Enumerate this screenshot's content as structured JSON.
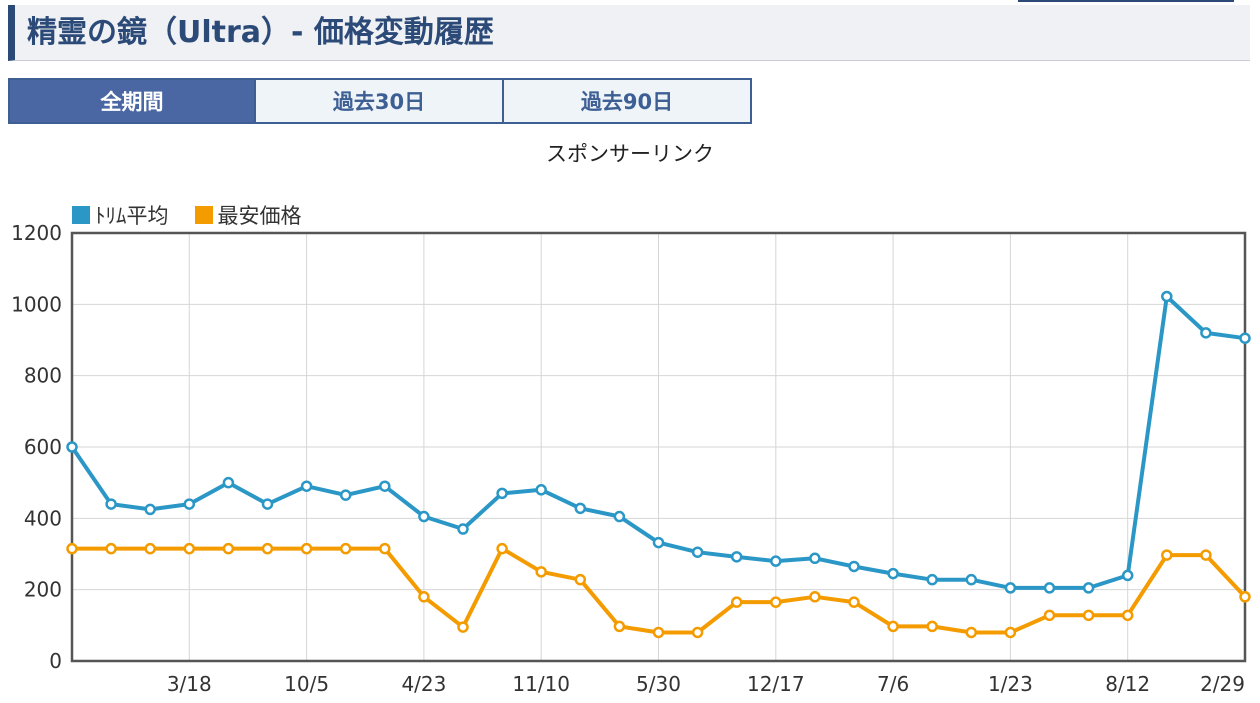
{
  "header": {
    "title": "精霊の鏡（Ultra）- 価格変動履歴"
  },
  "tabs": [
    {
      "label": "全期間",
      "active": true
    },
    {
      "label": "過去30日",
      "active": false
    },
    {
      "label": "過去90日",
      "active": false
    }
  ],
  "sponsor_text": "スポンサーリンク",
  "colors": {
    "accent": "#2c4a78",
    "tab_active": "#4a67a3",
    "series_trim": "#2b97c6",
    "series_min": "#f49b00"
  },
  "chart_data": {
    "type": "line",
    "x_tick_labels": [
      "3/18",
      "10/5",
      "4/23",
      "11/10",
      "5/30",
      "12/17",
      "7/6",
      "1/23",
      "8/12",
      "2/29"
    ],
    "ylim": [
      0,
      1200
    ],
    "yticks": [
      0,
      200,
      400,
      600,
      800,
      1000,
      1200
    ],
    "grid": true,
    "legend_position": "top-left",
    "series": [
      {
        "name": "ﾄﾘﾑ平均",
        "color": "#2b97c6",
        "values": [
          600,
          440,
          425,
          440,
          500,
          440,
          490,
          465,
          490,
          405,
          370,
          470,
          480,
          428,
          405,
          332,
          305,
          292,
          280,
          288,
          265,
          245,
          228,
          228,
          205,
          205,
          205,
          240,
          1022,
          920,
          905
        ]
      },
      {
        "name": "最安価格",
        "color": "#f49b00",
        "values": [
          315,
          315,
          315,
          315,
          315,
          315,
          315,
          315,
          315,
          180,
          95,
          315,
          250,
          228,
          97,
          80,
          80,
          165,
          165,
          180,
          165,
          97,
          97,
          80,
          80,
          128,
          128,
          128,
          297,
          297,
          180
        ]
      }
    ]
  }
}
